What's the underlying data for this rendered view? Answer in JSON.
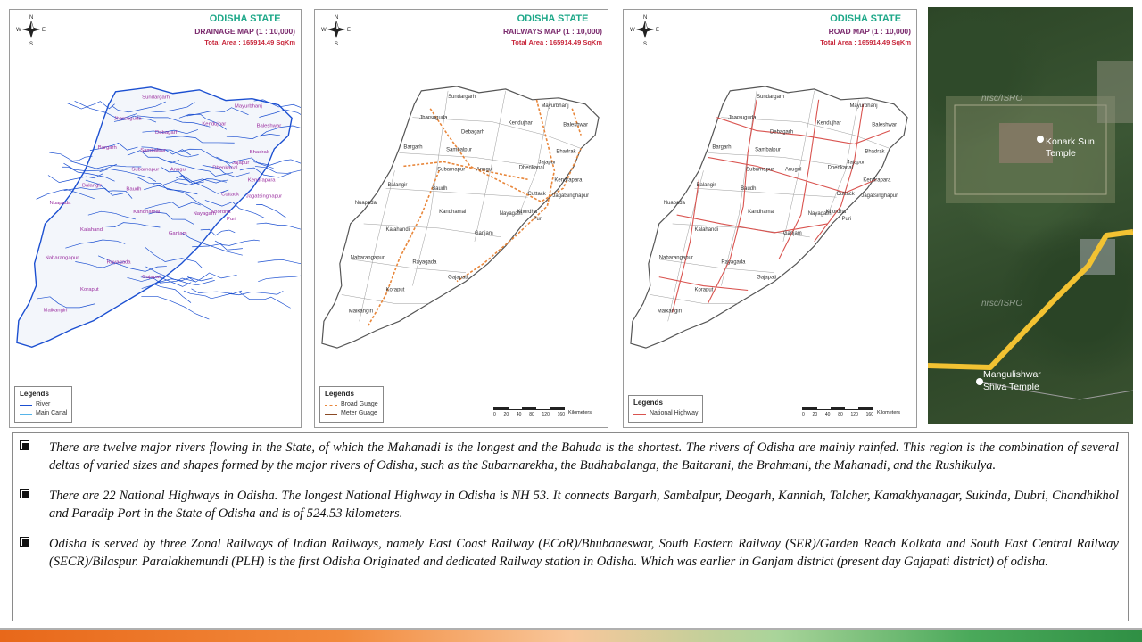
{
  "maps": [
    {
      "state": "ODISHA STATE",
      "title": "DRAINAGE MAP (1 : 10,000)",
      "area": "Total Area : 165914.49 SqKm",
      "legend_title": "Legends",
      "legend_items": [
        {
          "label": "River",
          "color": "#1b4fd1"
        },
        {
          "label": "Main Canal",
          "color": "#56b4e9"
        }
      ]
    },
    {
      "state": "ODISHA STATE",
      "title": "RAILWAYS MAP (1 : 10,000)",
      "area": "Total Area : 165914.49 SqKm",
      "legend_title": "Legends",
      "legend_items": [
        {
          "label": "Broad Guage",
          "color": "#e8863a"
        },
        {
          "label": "Meter Guage",
          "color": "#8b4a24"
        }
      ]
    },
    {
      "state": "ODISHA STATE",
      "title": "ROAD MAP (1 : 10,000)",
      "area": "Total Area : 165914.49 SqKm",
      "legend_title": "Legends",
      "legend_items": [
        {
          "label": "National Highway",
          "color": "#d9534f"
        }
      ]
    }
  ],
  "compass": {
    "n": "N",
    "s": "S",
    "e": "E",
    "w": "W"
  },
  "scale": {
    "ticks": [
      "0",
      "20",
      "40",
      "80",
      "120",
      "160"
    ],
    "unit": "Kilometers"
  },
  "districts": [
    "Sundargarh",
    "Mayurbhanj",
    "Jharsuguda",
    "Kendujhar",
    "Baleshwar",
    "Debagarh",
    "Bargarh",
    "Sambalpur",
    "Bhadrak",
    "Subarnapur",
    "Anugul",
    "Dhenkanal",
    "Jajapur",
    "Kendrapara",
    "Balangir",
    "Baudh",
    "Cuttack",
    "Jagatsinghapur",
    "Nuapada",
    "Kandhamal",
    "Nayagarh",
    "Khordha",
    "Puri",
    "Kalahandi",
    "Ganjam",
    "Nabarangapur",
    "Rayagada",
    "Gajapati",
    "Koraput",
    "Malkangiri"
  ],
  "satellite": {
    "watermark_top": "nrsc/ISRO",
    "watermark_mid": "nrsc/ISRO",
    "label_1": "Konark Sun",
    "label_2": "Temple",
    "label_3": "Mangulishwar",
    "label_4": "Shiva Temple"
  },
  "points": [
    "There are twelve major rivers flowing in the State, of which the Mahanadi is the longest and the Bahuda is the shortest. The rivers of Odisha are mainly rainfed.  This region is the combination of several deltas of varied sizes and shapes formed by the major rivers of Odisha, such as the Subarnarekha, the Budhabalanga, the Baitarani, the Brahmani, the Mahanadi, and the Rushikulya.",
    "There are 22 National Highways in Odisha. The longest National Highway in Odisha is NH 53. It connects Bargarh, Sambalpur, Deogarh, Kanniah, Talcher, Kamakhyanagar, Sukinda, Dubri, Chandhikhol and Paradip Port in the State of Odisha and is of 524.53 kilometers.",
    "Odisha is served by three Zonal Railways of Indian Railways, namely East Coast Railway (ECoR)/Bhubaneswar, South Eastern Railway (SER)/Garden Reach Kolkata and South East Central Railway (SECR)/Bilaspur. Paralakhemundi (PLH) is the first Odisha Originated and dedicated Railway station in Odisha. Which was earlier in Ganjam district (present day Gajapati district) of odisha."
  ]
}
